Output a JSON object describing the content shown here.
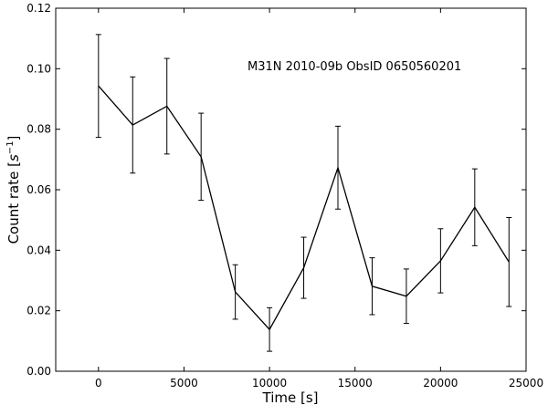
{
  "chart_data": {
    "type": "line",
    "title": "",
    "xlabel": "Time [s]",
    "ylabel": "Count rate",
    "ylabel_unit": "s",
    "ylabel_exp": "−1",
    "xlim": [
      -2500,
      25000
    ],
    "ylim": [
      0.0,
      0.12
    ],
    "xticks": [
      0,
      5000,
      10000,
      15000,
      20000,
      25000
    ],
    "xtick_labels": [
      "0",
      "5000",
      "10000",
      "15000",
      "20000",
      "25000"
    ],
    "yticks": [
      0.0,
      0.02,
      0.04,
      0.06,
      0.08,
      0.1,
      0.12
    ],
    "ytick_labels": [
      "0.00",
      "0.02",
      "0.04",
      "0.06",
      "0.08",
      "0.10",
      "0.12"
    ],
    "grid": false,
    "annotation": "M31N 2010-09b   ObsID 0650560201",
    "series": [
      {
        "x": [
          0,
          2000,
          4000,
          6000,
          8000,
          10000,
          12000,
          14000,
          16000,
          18000,
          20000,
          22000,
          24000
        ],
        "y": [
          0.0943,
          0.0814,
          0.0876,
          0.0709,
          0.0262,
          0.0138,
          0.0342,
          0.0673,
          0.0281,
          0.0248,
          0.0365,
          0.0542,
          0.0361
        ],
        "yerr": [
          0.017,
          0.0159,
          0.0158,
          0.0144,
          0.009,
          0.0072,
          0.0101,
          0.0137,
          0.0094,
          0.009,
          0.0106,
          0.0127,
          0.0147
        ],
        "color": "#000000"
      }
    ]
  }
}
